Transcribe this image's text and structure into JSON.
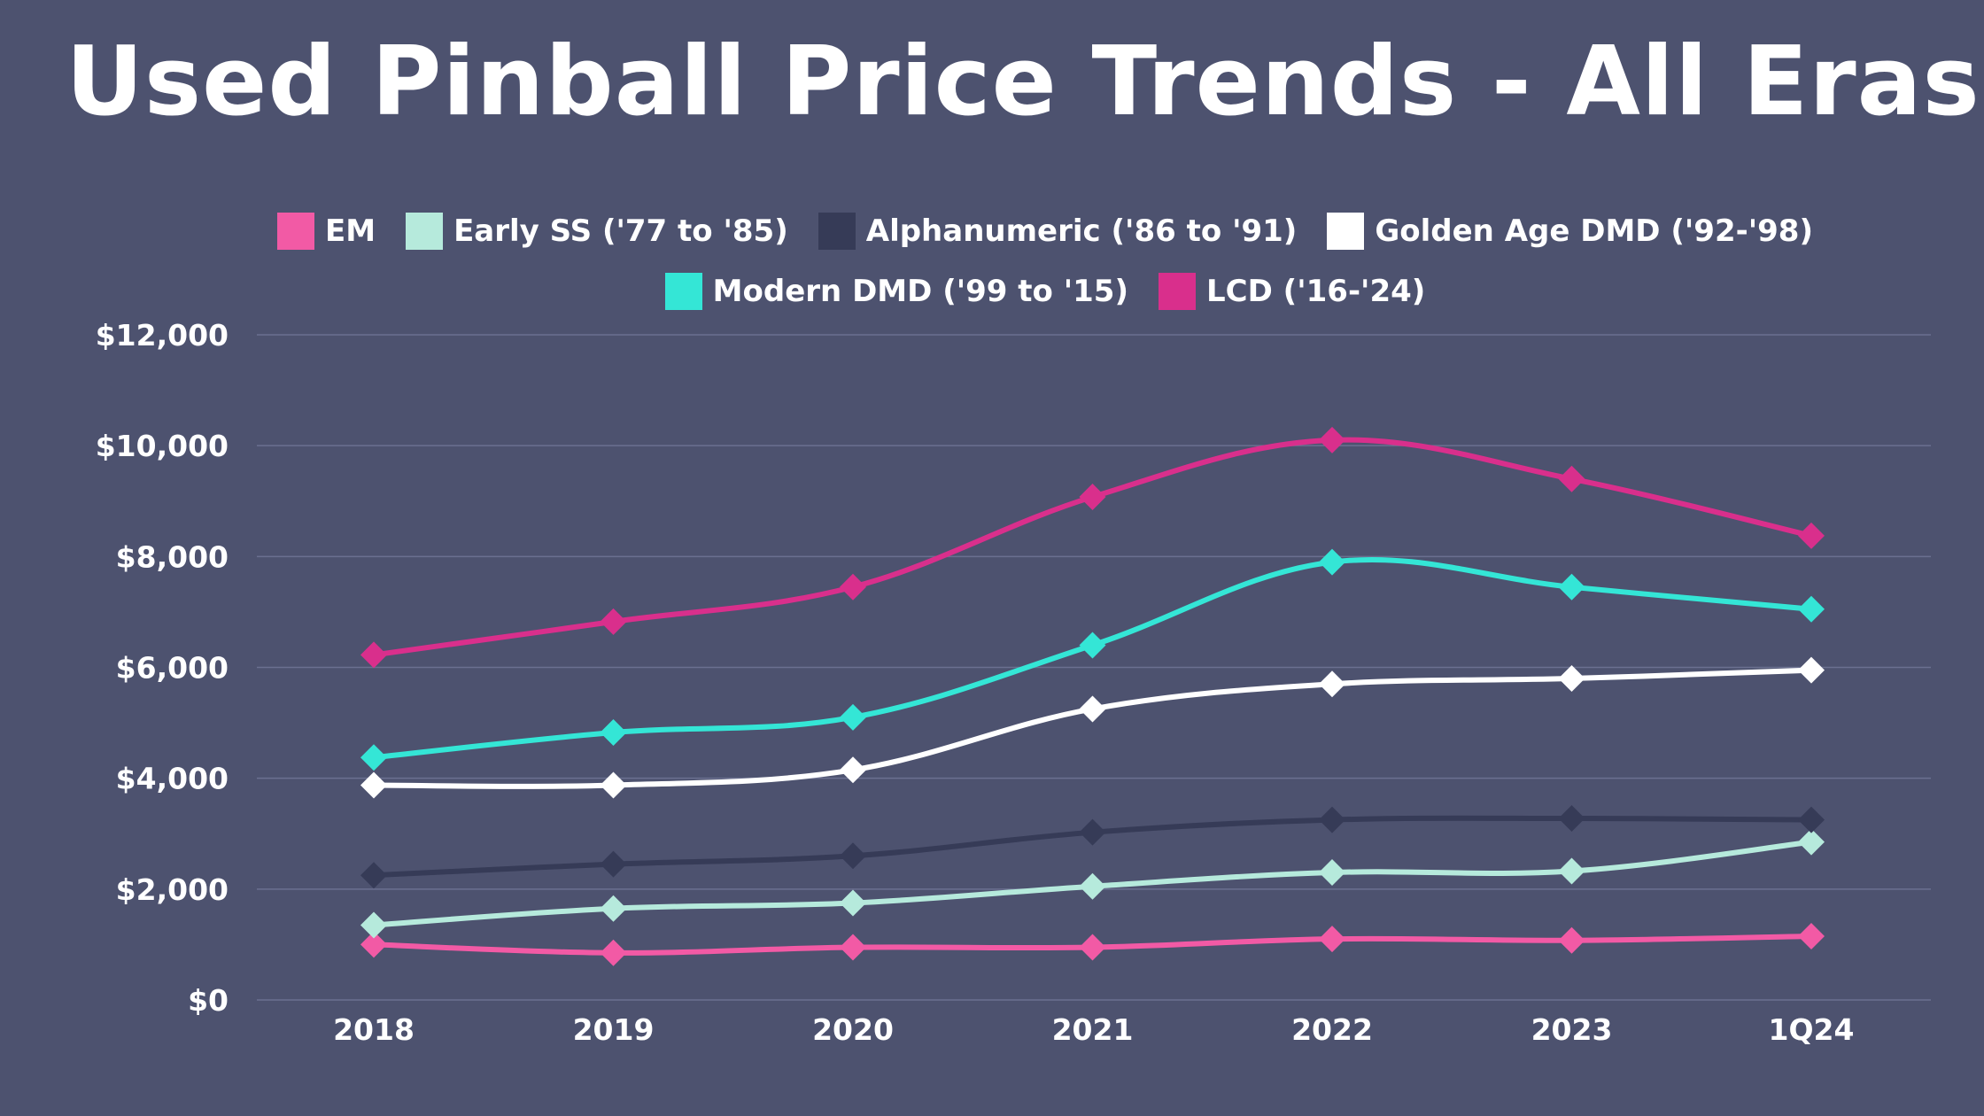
{
  "chart_data": {
    "type": "line",
    "title": "Used Pinball Price Trends - All Eras",
    "categories": [
      "2018",
      "2019",
      "2020",
      "2021",
      "2022",
      "2023",
      "1Q24"
    ],
    "ylim": [
      0,
      12000
    ],
    "y_ticks": [
      0,
      2000,
      4000,
      6000,
      8000,
      10000,
      12000
    ],
    "y_tick_labels": [
      "$0",
      "$2,000",
      "$4,000",
      "$6,000",
      "$8,000",
      "$10,000",
      "$12,000"
    ],
    "grid": true,
    "legend_position": "top",
    "series": [
      {
        "name": "EM",
        "color": "#f25aa5",
        "values": [
          1000,
          850,
          950,
          950,
          1100,
          1075,
          1150
        ]
      },
      {
        "name": "Early SS ('77 to '85)",
        "color": "#b6eadc",
        "values": [
          1350,
          1650,
          1750,
          2050,
          2300,
          2325,
          2850
        ]
      },
      {
        "name": "Alphanumeric ('86 to '91)",
        "color": "#363b57",
        "values": [
          2250,
          2450,
          2600,
          3025,
          3250,
          3275,
          3250
        ]
      },
      {
        "name": "Golden Age DMD ('92-'98)",
        "color": "#ffffff",
        "values": [
          3875,
          3875,
          4150,
          5250,
          5700,
          5800,
          5950
        ]
      },
      {
        "name": "Modern DMD ('99 to '15)",
        "color": "#34e6d6",
        "values": [
          4375,
          4825,
          5100,
          6400,
          7900,
          7450,
          7050
        ]
      },
      {
        "name": "LCD ('16-'24)",
        "color": "#d92f8c",
        "values": [
          6225,
          6825,
          7450,
          9075,
          10100,
          9400,
          8375
        ]
      }
    ],
    "background_color": "#4d526f",
    "grid_color": "#6b7090"
  }
}
